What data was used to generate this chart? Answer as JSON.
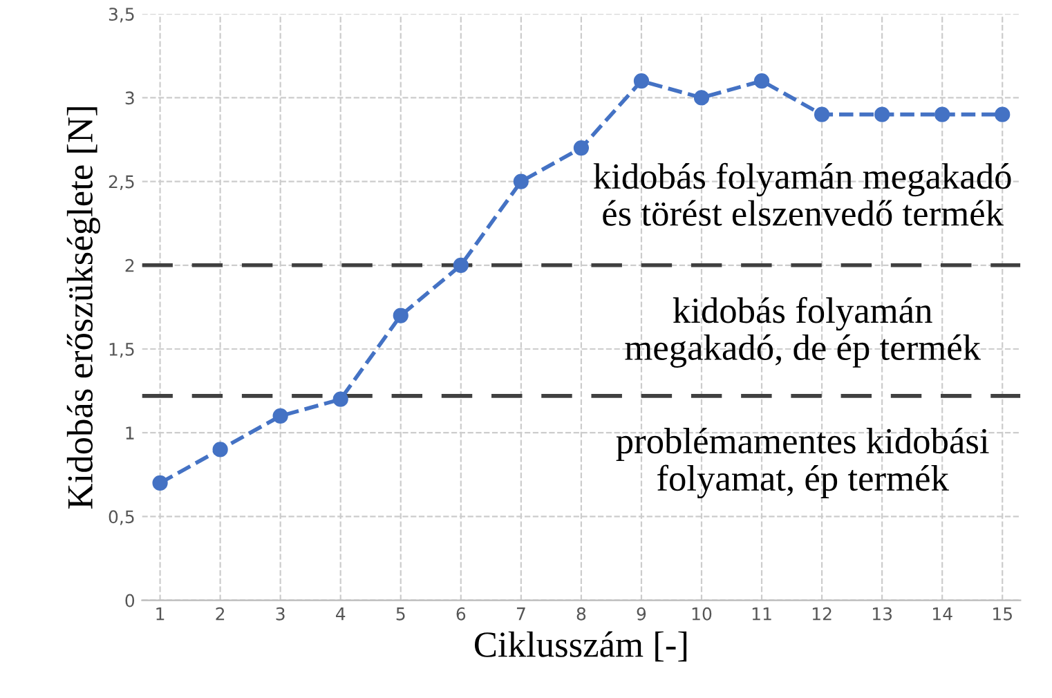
{
  "chart_data": {
    "type": "line",
    "xlabel": "Ciklusszám [-]",
    "ylabel": "Kidobás erőszükséglete [N]",
    "x": [
      1,
      2,
      3,
      4,
      5,
      6,
      7,
      8,
      9,
      10,
      11,
      12,
      13,
      14,
      15
    ],
    "series": [
      {
        "color": "#4472c4",
        "values": [
          0.7,
          0.9,
          1.1,
          1.2,
          1.7,
          2.0,
          2.5,
          2.7,
          3.1,
          3.0,
          3.1,
          2.9,
          2.9,
          2.9,
          2.9
        ]
      }
    ],
    "marker": "circle",
    "line_style": "dashed",
    "xlim": [
      0.7,
      15.3
    ],
    "xticks": [
      1,
      2,
      3,
      4,
      5,
      6,
      7,
      8,
      9,
      10,
      11,
      12,
      13,
      14,
      15
    ],
    "ylim": [
      0,
      3.5
    ],
    "yticks": [
      0,
      {
        "value": 0.5,
        "label": "0,5"
      },
      1,
      {
        "value": 1.5,
        "label": "1,5"
      },
      2,
      {
        "value": 2.5,
        "label": "2,5"
      },
      3,
      {
        "value": 3.5,
        "label": "3,5"
      }
    ],
    "grid": true,
    "ref_lines": [
      {
        "axis": "y",
        "value": 2,
        "color": "#404040",
        "line_style": "dashed"
      },
      {
        "axis": "y",
        "value": 1.22,
        "color": "#404040",
        "line_style": "dashed"
      }
    ],
    "annotations": [
      "kidobás folyamán megakadó\nés törést elszenvedő termék",
      "kidobás folyamán\nmegakadó, de ép termék",
      "problémamentes kidobási\nfolyamat, ép termék"
    ]
  }
}
